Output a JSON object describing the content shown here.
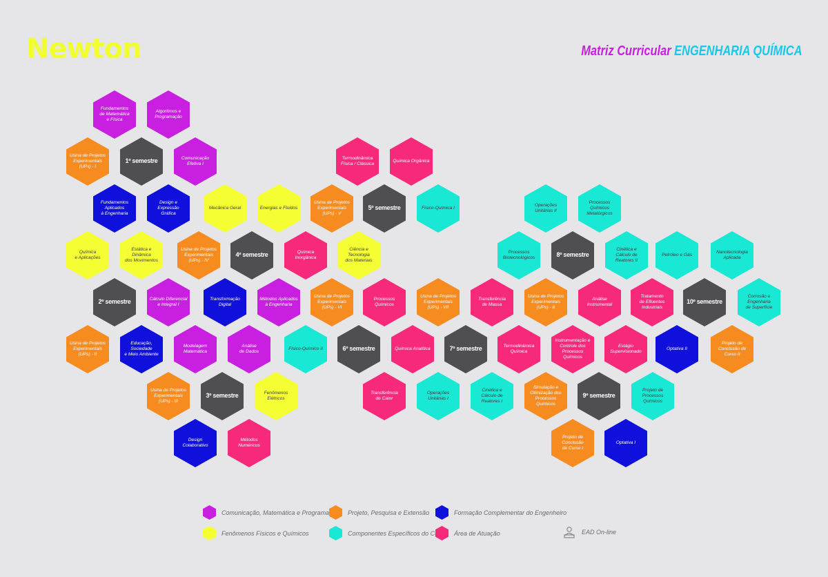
{
  "header": {
    "logo": "Newton",
    "title_prefix": "Matriz Curricular",
    "title_course": "ENGENHARIA QUÍMICA"
  },
  "colors": {
    "purple": "#c81fe0",
    "orange": "#f68b1f",
    "blue": "#1010dc",
    "yellow": "#f5ff33",
    "cyan": "#19e8d4",
    "pink": "#f7297a",
    "gray": "#4f4f52"
  },
  "legend": [
    {
      "label": "Comunicação, Matemática e Programação",
      "color": "purple"
    },
    {
      "label": "Projeto, Pesquisa e Extensão",
      "color": "orange"
    },
    {
      "label": "Formação Complementar do Engenheiro",
      "color": "blue"
    },
    {
      "label": "Fenômenos Físicos e Químicos",
      "color": "yellow"
    },
    {
      "label": "Componentes Específicos do Curso",
      "color": "cyan"
    },
    {
      "label": "Área de Atuação",
      "color": "pink"
    },
    {
      "label": "EAD On-line",
      "icon": "person-monitor-icon"
    }
  ],
  "hexagons": [
    {
      "label": "Fundamentos\nde Matemática\ne Física",
      "color": "purple"
    },
    {
      "label": "Algoritmos e\nProgramação",
      "color": "purple"
    },
    {
      "label": "Usina de Projetos\nExperimentais\n(UPs) - I",
      "color": "orange"
    },
    {
      "label": "1º semestre",
      "color": "gray",
      "semester": true
    },
    {
      "label": "Comunicação\nEfetiva I",
      "color": "purple"
    },
    {
      "label": "Fundamentos\nAplicados\nà Engenharia",
      "color": "blue"
    },
    {
      "label": "Design e\nExpressão\nGráfica",
      "color": "blue"
    },
    {
      "label": "Mecânica Geral",
      "color": "yellow"
    },
    {
      "label": "Energias e Fluidos",
      "color": "yellow"
    },
    {
      "label": "Química\ne Aplicações",
      "color": "yellow"
    },
    {
      "label": "Estática e\nDinâmica\ndos Movimentos",
      "color": "yellow"
    },
    {
      "label": "Usina de Projetos\nExperimentais\n(UPs) - IV",
      "color": "orange"
    },
    {
      "label": "4º semestre",
      "color": "gray",
      "semester": true
    },
    {
      "label": "Química Inorgânica",
      "color": "pink"
    },
    {
      "label": "Ciência e Tecnologia\ndos Materiais",
      "color": "yellow"
    },
    {
      "label": "2º semestre",
      "color": "gray",
      "semester": true
    },
    {
      "label": "Cálculo Diferencial\ne Integral I",
      "color": "purple"
    },
    {
      "label": "Transformação Digital",
      "color": "blue"
    },
    {
      "label": "Métodos Aplicados\nà Engenharia",
      "color": "purple"
    },
    {
      "label": "Usina de Projetos\nExperimentais\n(UPs) - II",
      "color": "orange"
    },
    {
      "label": "Educação,\nSociedade\ne Meio Ambiente",
      "color": "blue"
    },
    {
      "label": "Modelagem\nMatemática",
      "color": "purple"
    },
    {
      "label": "Análise\nde Dados",
      "color": "purple"
    },
    {
      "label": "Usina de Projetos\nExperimentais\n(UPs) - III",
      "color": "orange"
    },
    {
      "label": "3º semestre",
      "color": "gray",
      "semester": true
    },
    {
      "label": "Fenômenos\nElétricos",
      "color": "yellow"
    },
    {
      "label": "Design Colaborativo",
      "color": "blue"
    },
    {
      "label": "Métodos Numéricos",
      "color": "pink"
    },
    {
      "label": "Termodinâmica\nFísica / Clássica",
      "color": "pink"
    },
    {
      "label": "Química Orgânica",
      "color": "pink"
    },
    {
      "label": "Usina de Projetos\nExperimentais\n(UPs) - V",
      "color": "orange"
    },
    {
      "label": "5º semestre",
      "color": "gray",
      "semester": true
    },
    {
      "label": "Físico-Química I",
      "color": "cyan"
    },
    {
      "label": "Usina de Projetos\nExperimentais\n(UPs) - VI",
      "color": "orange"
    },
    {
      "label": "Processos Químicos",
      "color": "pink"
    },
    {
      "label": "Usina de Projetos\nExperimentais\n(UPs) - VII",
      "color": "orange"
    },
    {
      "label": "Físico-Químico II",
      "color": "cyan"
    },
    {
      "label": "6º semestre",
      "color": "gray",
      "semester": true
    },
    {
      "label": "Química Analítica",
      "color": "pink"
    },
    {
      "label": "7º semestre",
      "color": "gray",
      "semester": true
    },
    {
      "label": "Transferência\nde Calor",
      "color": "pink"
    },
    {
      "label": "Operações Unitárias I",
      "color": "cyan"
    },
    {
      "label": "Cinética e\nCálculo de\nReatores I",
      "color": "cyan"
    },
    {
      "label": "Transferência\nde Massa",
      "color": "pink"
    },
    {
      "label": "Termodinâmica\nQuímica",
      "color": "pink"
    },
    {
      "label": "Operações\nUnitárias II",
      "color": "cyan"
    },
    {
      "label": "Processos\nQuímicos\nMetalúrgicos",
      "color": "cyan"
    },
    {
      "label": "Processos\nBiotecnológicos",
      "color": "cyan"
    },
    {
      "label": "8º semestre",
      "color": "gray",
      "semester": true
    },
    {
      "label": "Cinética e\nCálculo de\nReatores II",
      "color": "cyan"
    },
    {
      "label": "Petróleo e Gás",
      "color": "cyan"
    },
    {
      "label": "Nanotecnologia\nAplicada",
      "color": "cyan"
    },
    {
      "label": "Usina de Projetos\nExperimentais\n(UPs) - 8",
      "color": "orange"
    },
    {
      "label": "Análise Instrumental",
      "color": "pink"
    },
    {
      "label": "Tratamento\nde Efluentes\nIndustriais",
      "color": "pink"
    },
    {
      "label": "10º semestre",
      "color": "gray",
      "semester": true
    },
    {
      "label": "Corrosão e\nEngenharia\nde Superfície",
      "color": "cyan"
    },
    {
      "label": "Instrumentação e\nControle dos\nProcessos Químicos",
      "color": "pink"
    },
    {
      "label": "Estágio\nSupervisionado",
      "color": "pink"
    },
    {
      "label": "Optativa II",
      "color": "blue"
    },
    {
      "label": "Projeto de\nConclusão de\nCurso II",
      "color": "orange"
    },
    {
      "label": "Simulação e\nOtimização dos\nProcessos Químicos",
      "color": "orange"
    },
    {
      "label": "9º semestre",
      "color": "gray",
      "semester": true
    },
    {
      "label": "Projeto de\nProcessos Químicos",
      "color": "cyan"
    },
    {
      "label": "Projeto de\nConclusão\nde Curso I",
      "color": "orange"
    },
    {
      "label": "Optativa I",
      "color": "blue"
    }
  ]
}
